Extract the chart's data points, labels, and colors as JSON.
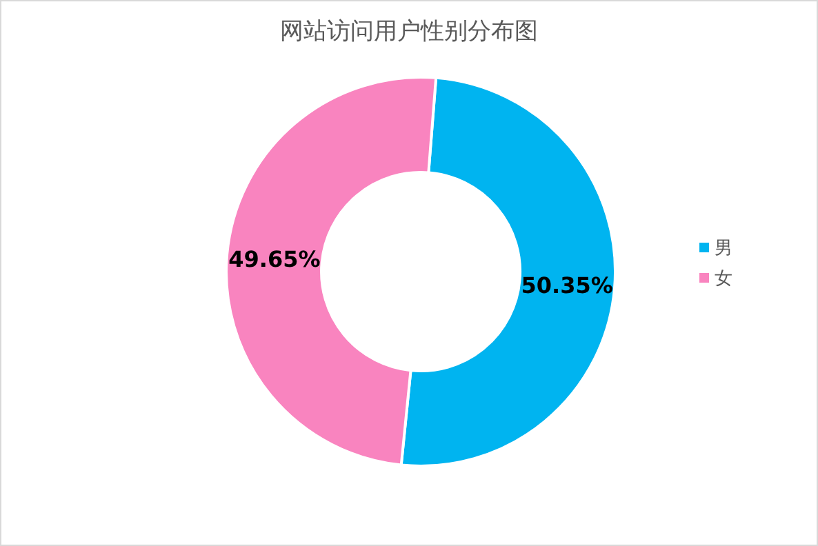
{
  "chart_data": {
    "type": "donut",
    "title": "网站访问用户性别分布图",
    "categories": [
      "男",
      "女"
    ],
    "values": [
      50.35,
      49.65
    ],
    "colors": [
      "#00b4f0",
      "#f984bf"
    ],
    "value_labels": [
      "50.35%",
      "49.65%"
    ],
    "legend": "right"
  }
}
